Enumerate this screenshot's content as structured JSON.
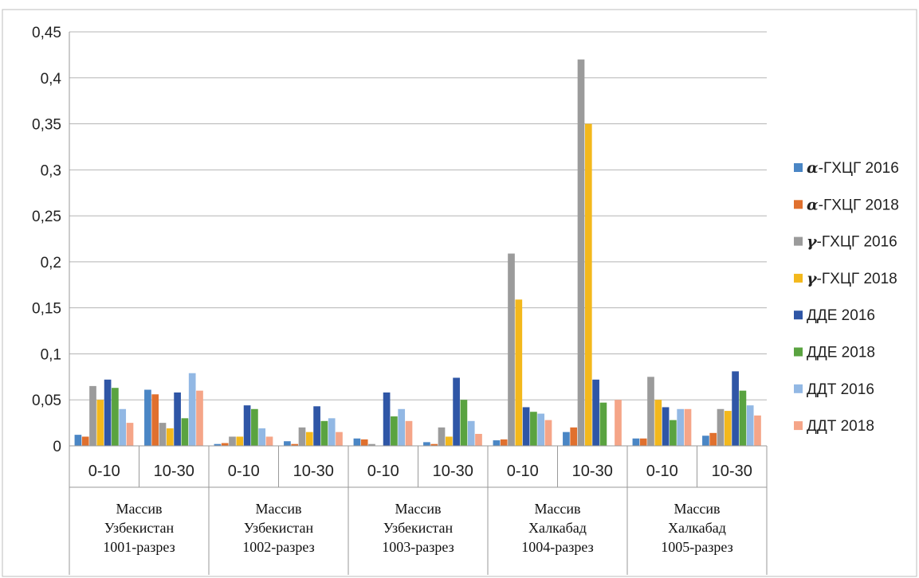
{
  "chart_data": {
    "type": "bar",
    "ylim": [
      0,
      0.45
    ],
    "yticks": [
      "0",
      "0,05",
      "0,1",
      "0,15",
      "0,2",
      "0,25",
      "0,3",
      "0,35",
      "0,4",
      "0,45"
    ],
    "grid": true,
    "legend_position": "right",
    "categories": [
      "0-10",
      "10-30",
      "0-10",
      "10-30",
      "0-10",
      "10-30",
      "0-10",
      "10-30",
      "0-10",
      "10-30"
    ],
    "groups": [
      {
        "lines": [
          "Массив",
          "Узбекистан",
          "1001-разрез"
        ]
      },
      {
        "lines": [
          "Массив",
          "Узбекистан",
          "1002-разрез"
        ]
      },
      {
        "lines": [
          "Массив",
          "Узбекистан",
          "1003-разрез"
        ]
      },
      {
        "lines": [
          "Массив",
          "Халкабад",
          "1004-разрез"
        ]
      },
      {
        "lines": [
          "Массив",
          "Халкабад",
          "1005-разрез"
        ]
      }
    ],
    "series": [
      {
        "name_prefix": "α",
        "name": "-ГХЦГ 2016",
        "color": "#4a86c5",
        "values": [
          0.012,
          0.061,
          0.002,
          0.005,
          0.008,
          0.004,
          0.006,
          0.015,
          0.008,
          0.011
        ]
      },
      {
        "name_prefix": "α",
        "name": "-ГХЦГ 2018",
        "color": "#e0702e",
        "values": [
          0.01,
          0.056,
          0.003,
          0.002,
          0.007,
          0.002,
          0.007,
          0.02,
          0.008,
          0.014
        ]
      },
      {
        "name_prefix": "γ",
        "name": "-ГХЦГ 2016",
        "color": "#9b9b9b",
        "values": [
          0.065,
          0.025,
          0.01,
          0.02,
          0.002,
          0.02,
          0.209,
          0.42,
          0.075,
          0.04
        ]
      },
      {
        "name_prefix": "γ",
        "name": "-ГХЦГ 2018",
        "color": "#f3b81c",
        "values": [
          0.05,
          0.019,
          0.01,
          0.015,
          0.0,
          0.01,
          0.159,
          0.35,
          0.05,
          0.038
        ]
      },
      {
        "name_prefix": "",
        "name": "ДДЕ 2016",
        "color": "#2f56a6",
        "values": [
          0.072,
          0.058,
          0.044,
          0.043,
          0.058,
          0.074,
          0.042,
          0.072,
          0.042,
          0.081
        ]
      },
      {
        "name_prefix": "",
        "name": "ДДЕ 2018",
        "color": "#5aa340",
        "values": [
          0.063,
          0.03,
          0.04,
          0.027,
          0.032,
          0.05,
          0.037,
          0.047,
          0.028,
          0.06
        ]
      },
      {
        "name_prefix": "",
        "name": "ДДТ 2016",
        "color": "#92b8e4",
        "values": [
          0.04,
          0.079,
          0.019,
          0.03,
          0.04,
          0.027,
          0.035,
          0.0,
          0.04,
          0.044
        ]
      },
      {
        "name_prefix": "",
        "name": "ДДТ 2018",
        "color": "#f5a588",
        "values": [
          0.025,
          0.06,
          0.01,
          0.015,
          0.027,
          0.013,
          0.028,
          0.05,
          0.04,
          0.033
        ]
      }
    ]
  }
}
